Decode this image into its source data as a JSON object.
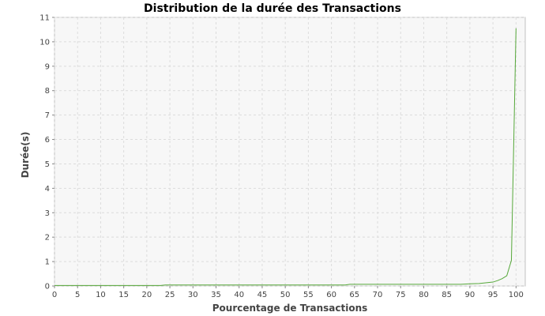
{
  "chart_data": {
    "type": "line",
    "title": "Distribution de la durée des Transactions",
    "xlabel": "Pourcentage de Transactions",
    "ylabel": "Durée(s)",
    "xlim": [
      0,
      102
    ],
    "ylim": [
      0,
      11
    ],
    "xticks": [
      0,
      5,
      10,
      15,
      20,
      25,
      30,
      35,
      40,
      45,
      50,
      55,
      60,
      65,
      70,
      75,
      80,
      85,
      90,
      95,
      100
    ],
    "yticks": [
      0,
      1,
      2,
      3,
      4,
      5,
      6,
      7,
      8,
      9,
      10,
      11
    ],
    "grid": true,
    "series": [
      {
        "color": "#56a83a",
        "x": [
          0,
          23,
          24,
          63,
          64,
          88,
          90,
          92,
          93,
          94,
          95,
          96,
          97,
          98,
          99,
          100
        ],
        "y": [
          0.02,
          0.02,
          0.04,
          0.04,
          0.07,
          0.07,
          0.09,
          0.1,
          0.12,
          0.14,
          0.16,
          0.22,
          0.3,
          0.42,
          1.05,
          10.55
        ]
      }
    ]
  }
}
